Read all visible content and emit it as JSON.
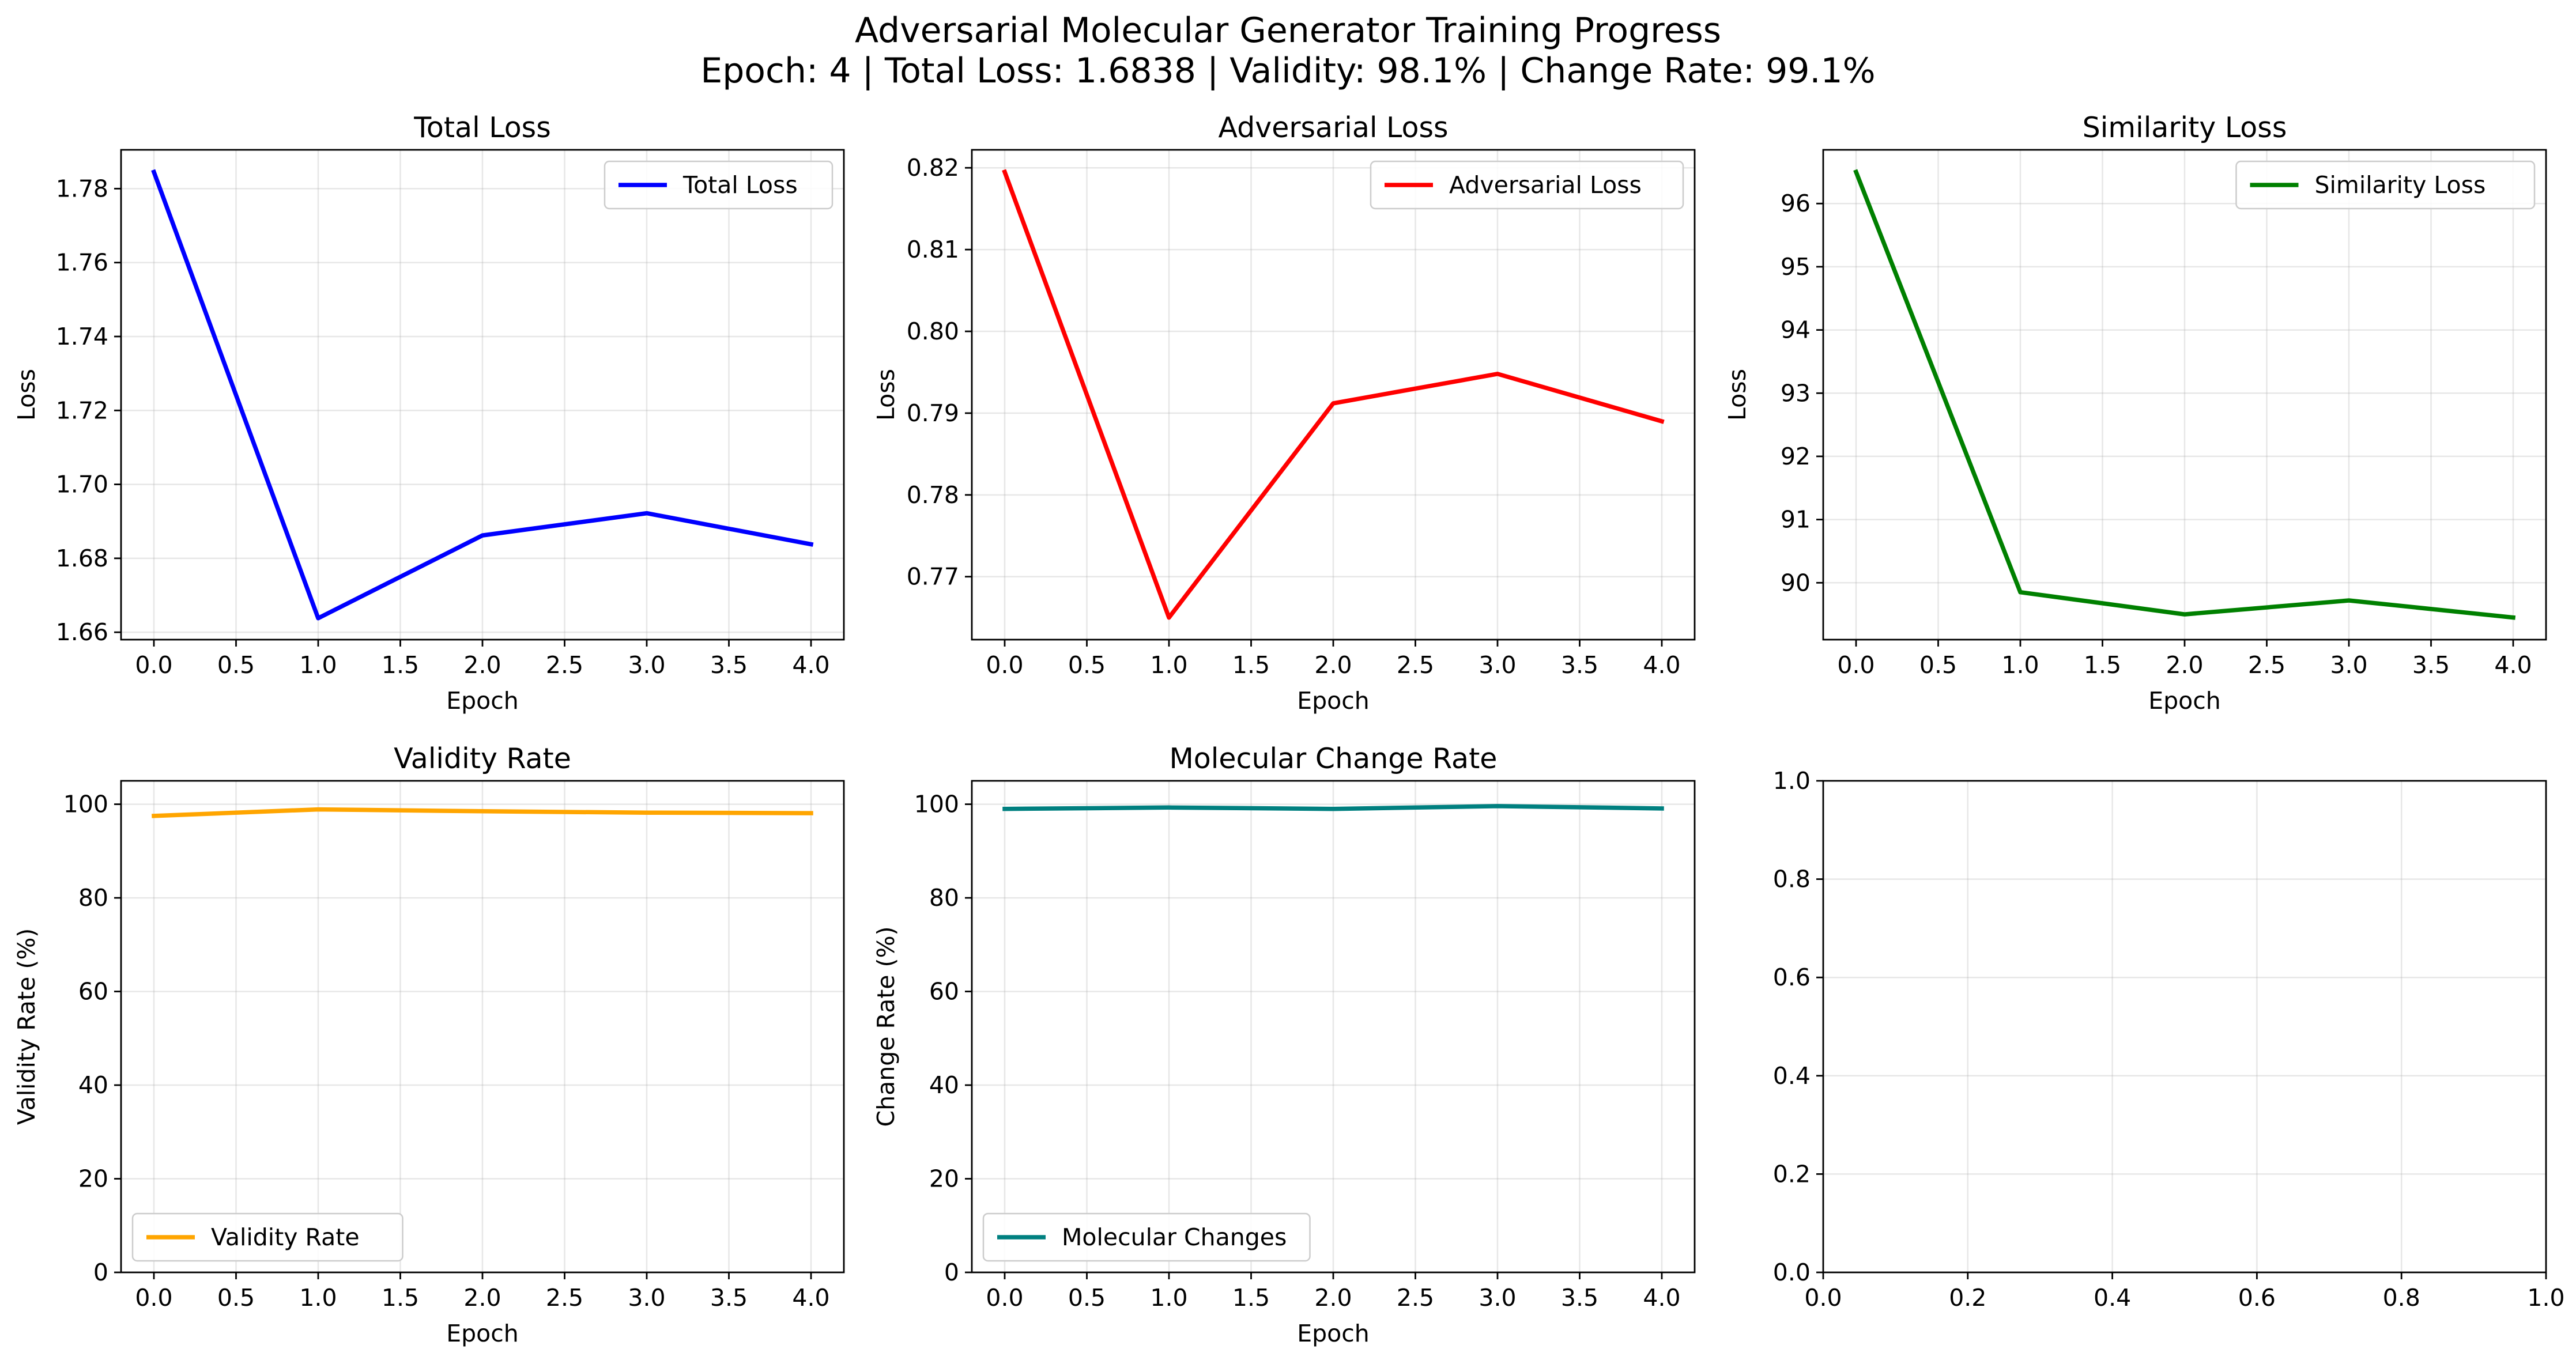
{
  "figure": {
    "title_line1": "Adversarial Molecular Generator Training Progress",
    "title_line2": "Epoch: 4 | Total Loss: 1.6838 | Validity: 98.1% | Change Rate: 99.1%"
  },
  "chart_data": [
    {
      "type": "line",
      "title": "Total Loss",
      "xlabel": "Epoch",
      "ylabel": "Loss",
      "x": [
        0,
        1,
        2,
        3,
        4
      ],
      "series": [
        {
          "name": "Total Loss",
          "color": "#0000ff",
          "values": [
            1.7845,
            1.6638,
            1.6862,
            1.6922,
            1.6838
          ]
        }
      ],
      "xlim": [
        -0.2,
        4.2
      ],
      "ylim": [
        1.658,
        1.7905
      ],
      "xticks": [
        0,
        0.5,
        1,
        1.5,
        2,
        2.5,
        3,
        3.5,
        4
      ],
      "xtick_labels": [
        "0.0",
        "0.5",
        "1.0",
        "1.5",
        "2.0",
        "2.5",
        "3.0",
        "3.5",
        "4.0"
      ],
      "yticks": [
        1.66,
        1.68,
        1.7,
        1.72,
        1.74,
        1.76,
        1.78
      ],
      "ytick_labels": [
        "1.66",
        "1.68",
        "1.70",
        "1.72",
        "1.74",
        "1.76",
        "1.78"
      ],
      "grid": true,
      "legend": "upper right"
    },
    {
      "type": "line",
      "title": "Adversarial Loss",
      "xlabel": "Epoch",
      "ylabel": "Loss",
      "x": [
        0,
        1,
        2,
        3,
        4
      ],
      "series": [
        {
          "name": "Adversarial Loss",
          "color": "#ff0000",
          "values": [
            0.8195,
            0.765,
            0.7912,
            0.7948,
            0.789
          ]
        }
      ],
      "xlim": [
        -0.2,
        4.2
      ],
      "ylim": [
        0.7623,
        0.8222
      ],
      "xticks": [
        0,
        0.5,
        1,
        1.5,
        2,
        2.5,
        3,
        3.5,
        4
      ],
      "xtick_labels": [
        "0.0",
        "0.5",
        "1.0",
        "1.5",
        "2.0",
        "2.5",
        "3.0",
        "3.5",
        "4.0"
      ],
      "yticks": [
        0.77,
        0.78,
        0.79,
        0.8,
        0.81,
        0.82
      ],
      "ytick_labels": [
        "0.77",
        "0.78",
        "0.79",
        "0.80",
        "0.81",
        "0.82"
      ],
      "grid": true,
      "legend": "upper right"
    },
    {
      "type": "line",
      "title": "Similarity Loss",
      "xlabel": "Epoch",
      "ylabel": "Loss",
      "x": [
        0,
        1,
        2,
        3,
        4
      ],
      "series": [
        {
          "name": "Similarity Loss",
          "color": "#008000",
          "values": [
            96.5,
            89.85,
            89.5,
            89.72,
            89.45
          ]
        }
      ],
      "xlim": [
        -0.2,
        4.2
      ],
      "ylim": [
        89.1,
        96.85
      ],
      "xticks": [
        0,
        0.5,
        1,
        1.5,
        2,
        2.5,
        3,
        3.5,
        4
      ],
      "xtick_labels": [
        "0.0",
        "0.5",
        "1.0",
        "1.5",
        "2.0",
        "2.5",
        "3.0",
        "3.5",
        "4.0"
      ],
      "yticks": [
        90,
        91,
        92,
        93,
        94,
        95,
        96
      ],
      "ytick_labels": [
        "90",
        "91",
        "92",
        "93",
        "94",
        "95",
        "96"
      ],
      "grid": true,
      "legend": "upper right"
    },
    {
      "type": "line",
      "title": "Validity Rate",
      "xlabel": "Epoch",
      "ylabel": "Validity Rate (%)",
      "x": [
        0,
        1,
        2,
        3,
        4
      ],
      "series": [
        {
          "name": "Validity Rate",
          "color": "#ffa500",
          "values": [
            97.5,
            98.9,
            98.5,
            98.2,
            98.1
          ]
        }
      ],
      "xlim": [
        -0.2,
        4.2
      ],
      "ylim": [
        0,
        105
      ],
      "xticks": [
        0,
        0.5,
        1,
        1.5,
        2,
        2.5,
        3,
        3.5,
        4
      ],
      "xtick_labels": [
        "0.0",
        "0.5",
        "1.0",
        "1.5",
        "2.0",
        "2.5",
        "3.0",
        "3.5",
        "4.0"
      ],
      "yticks": [
        0,
        20,
        40,
        60,
        80,
        100
      ],
      "ytick_labels": [
        "0",
        "20",
        "40",
        "60",
        "80",
        "100"
      ],
      "grid": true,
      "legend": "lower left"
    },
    {
      "type": "line",
      "title": "Molecular Change Rate",
      "xlabel": "Epoch",
      "ylabel": "Change Rate (%)",
      "x": [
        0,
        1,
        2,
        3,
        4
      ],
      "series": [
        {
          "name": "Molecular Changes",
          "color": "#008080",
          "values": [
            99.0,
            99.3,
            99.0,
            99.6,
            99.1
          ]
        }
      ],
      "xlim": [
        -0.2,
        4.2
      ],
      "ylim": [
        0,
        105
      ],
      "xticks": [
        0,
        0.5,
        1,
        1.5,
        2,
        2.5,
        3,
        3.5,
        4
      ],
      "xtick_labels": [
        "0.0",
        "0.5",
        "1.0",
        "1.5",
        "2.0",
        "2.5",
        "3.0",
        "3.5",
        "4.0"
      ],
      "yticks": [
        0,
        20,
        40,
        60,
        80,
        100
      ],
      "ytick_labels": [
        "0",
        "20",
        "40",
        "60",
        "80",
        "100"
      ],
      "grid": true,
      "legend": "lower left"
    },
    {
      "type": "line",
      "title": "",
      "xlabel": "",
      "ylabel": "",
      "x": [],
      "series": [],
      "xlim": [
        0,
        1
      ],
      "ylim": [
        0,
        1
      ],
      "xticks": [
        0,
        0.2,
        0.4,
        0.6,
        0.8,
        1.0
      ],
      "xtick_labels": [
        "0.0",
        "0.2",
        "0.4",
        "0.6",
        "0.8",
        "1.0"
      ],
      "yticks": [
        0,
        0.2,
        0.4,
        0.6,
        0.8,
        1.0
      ],
      "ytick_labels": [
        "0.0",
        "0.2",
        "0.4",
        "0.6",
        "0.8",
        "1.0"
      ],
      "grid": true,
      "legend": ""
    }
  ]
}
